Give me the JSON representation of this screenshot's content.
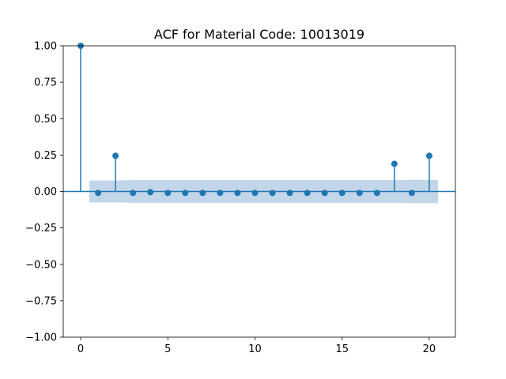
{
  "chart_data": {
    "type": "stem",
    "title": "ACF for Material Code: 10013019",
    "xlabel": "",
    "ylabel": "",
    "xlim": [
      -1,
      21.5
    ],
    "ylim": [
      -1.0,
      1.0
    ],
    "x_ticks": [
      0,
      5,
      10,
      15,
      20
    ],
    "y_ticks": [
      -1.0,
      -0.75,
      -0.5,
      -0.25,
      0.0,
      0.25,
      0.5,
      0.75,
      1.0
    ],
    "x_tick_labels": [
      "0",
      "5",
      "10",
      "15",
      "20"
    ],
    "y_tick_labels": [
      "−1.00",
      "−0.75",
      "−0.50",
      "−0.25",
      "0.00",
      "0.25",
      "0.50",
      "0.75",
      "1.00"
    ],
    "grid": false,
    "x": [
      0,
      1,
      2,
      3,
      4,
      5,
      6,
      7,
      8,
      9,
      10,
      11,
      12,
      13,
      14,
      15,
      16,
      17,
      18,
      19,
      20
    ],
    "values": [
      1.0,
      -0.01,
      0.245,
      -0.01,
      -0.005,
      -0.01,
      -0.01,
      -0.01,
      -0.01,
      -0.01,
      -0.01,
      -0.01,
      -0.01,
      -0.01,
      -0.01,
      -0.01,
      -0.01,
      -0.01,
      0.19,
      -0.01,
      0.245
    ],
    "confidence_band": {
      "x": [
        0.5,
        1,
        2,
        3,
        4,
        5,
        6,
        7,
        8,
        9,
        10,
        11,
        12,
        13,
        14,
        15,
        16,
        17,
        18,
        19,
        20,
        20.5
      ],
      "upper": [
        0.075,
        0.075,
        0.075,
        0.078,
        0.078,
        0.078,
        0.078,
        0.078,
        0.078,
        0.078,
        0.078,
        0.078,
        0.078,
        0.078,
        0.078,
        0.078,
        0.078,
        0.078,
        0.078,
        0.08,
        0.08,
        0.08
      ],
      "lower": [
        -0.075,
        -0.075,
        -0.075,
        -0.078,
        -0.078,
        -0.078,
        -0.078,
        -0.078,
        -0.078,
        -0.078,
        -0.078,
        -0.078,
        -0.078,
        -0.078,
        -0.078,
        -0.078,
        -0.078,
        -0.078,
        -0.078,
        -0.08,
        -0.08,
        -0.08
      ]
    },
    "colors": {
      "stem": "#1f77b4",
      "band": "#b7cfe6",
      "axis": "#000000"
    }
  }
}
